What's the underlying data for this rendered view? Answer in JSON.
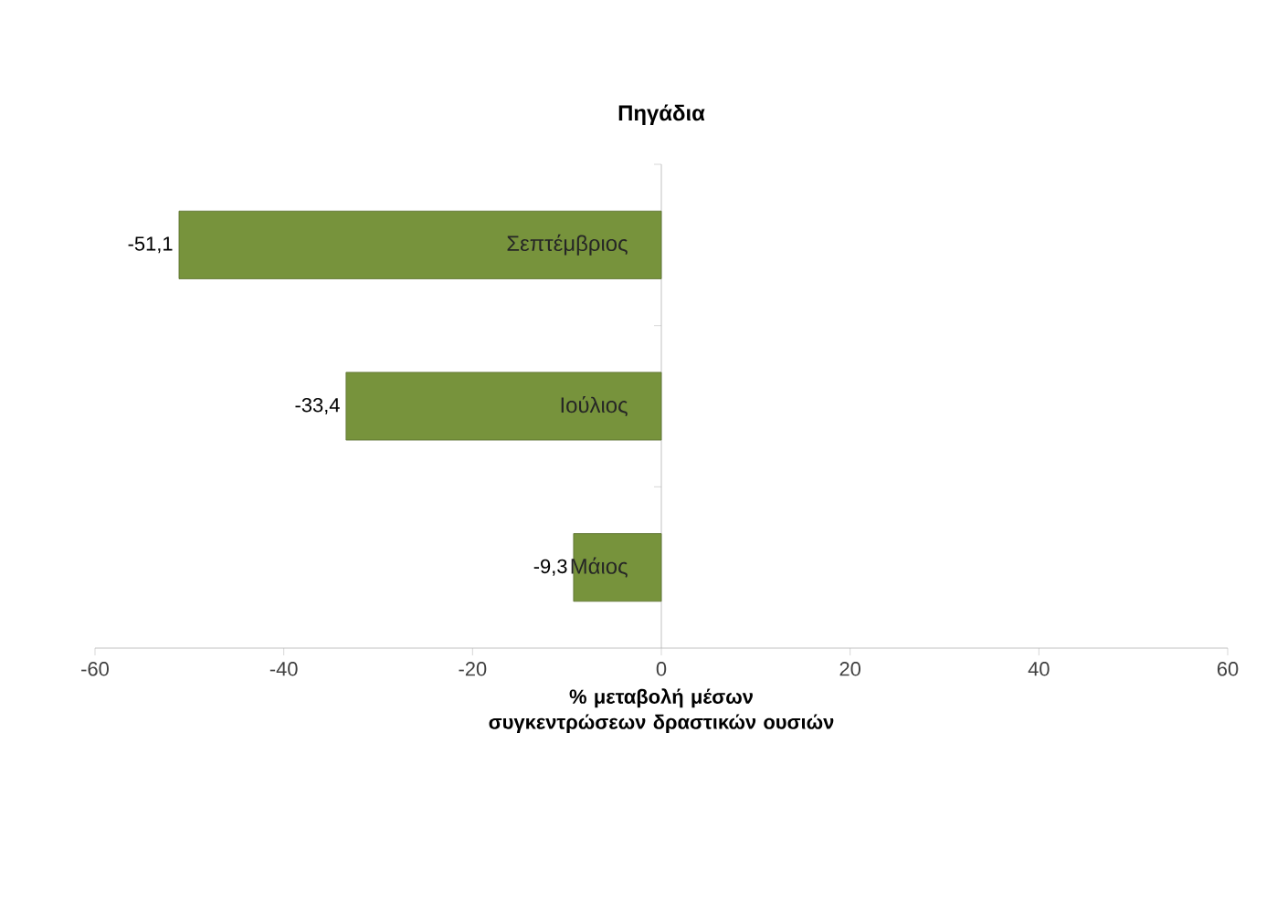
{
  "chart_data": {
    "type": "bar",
    "orientation": "horizontal",
    "title": "Πηγάδια",
    "xlabel": "% μεταβολή μέσων συγκεντρώσεων δραστικών ουσιών",
    "categories": [
      "Σεπτέμβριος",
      "Ιούλιος",
      "Μάιος"
    ],
    "values": [
      -51.1,
      -33.4,
      -9.3
    ],
    "value_labels": [
      "-51,1",
      "-33,4",
      "-9,3"
    ],
    "color": "#77933c",
    "xlim": [
      -60,
      60
    ],
    "xticks": [
      -60,
      -40,
      -20,
      0,
      20,
      40,
      60
    ],
    "grid": false
  }
}
